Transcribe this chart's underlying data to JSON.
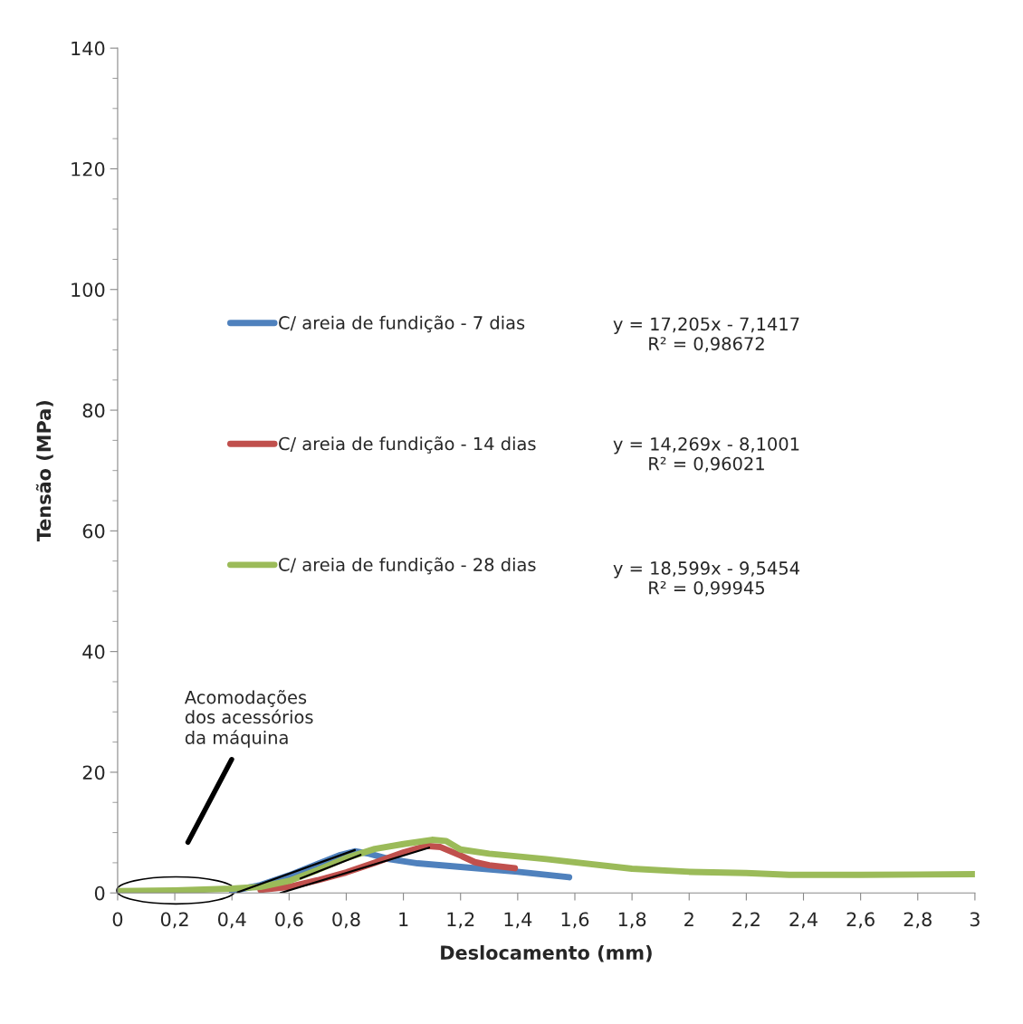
{
  "chart_data": {
    "type": "line",
    "xlabel": "Deslocamento (mm)",
    "ylabel": "Tensão (MPa)",
    "xlim": [
      0,
      3
    ],
    "ylim": [
      0,
      140
    ],
    "xticks": [
      0,
      {
        "value": 0.2,
        "label": "0,2"
      },
      {
        "value": 0.4,
        "label": "0,4"
      },
      {
        "value": 0.6,
        "label": "0,6"
      },
      {
        "value": 0.8,
        "label": "0,8"
      },
      1,
      {
        "value": 1.2,
        "label": "1,2"
      },
      {
        "value": 1.4,
        "label": "1,4"
      },
      {
        "value": 1.6,
        "label": "1,6"
      },
      {
        "value": 1.8,
        "label": "1,8"
      },
      2,
      {
        "value": 2.2,
        "label": "2,2"
      },
      {
        "value": 2.4,
        "label": "2,4"
      },
      {
        "value": 2.6,
        "label": "2,6"
      },
      {
        "value": 2.8,
        "label": "2,8"
      },
      3
    ],
    "yticks": [
      0,
      20,
      40,
      60,
      80,
      100,
      120,
      140
    ],
    "grid": false,
    "legend": "center",
    "marker": "none",
    "line_style": "solid",
    "series": [
      {
        "name": "C/ areia de fundição - 7 dias",
        "color": "#4f81bd",
        "x": [
          0.4,
          0.5,
          0.6,
          0.7,
          0.78,
          0.83,
          0.88,
          0.95,
          1.05,
          1.2,
          1.4,
          1.58
        ],
        "values": [
          0.3,
          1.3,
          2.9,
          4.8,
          6.3,
          6.9,
          6.5,
          5.6,
          4.9,
          4.3,
          3.5,
          2.6
        ]
      },
      {
        "name": "C/ areia de fundição - 14 dias",
        "color": "#c0504d",
        "x": [
          0.5,
          0.6,
          0.7,
          0.8,
          0.9,
          1.0,
          1.08,
          1.13,
          1.2,
          1.25,
          1.3,
          1.39
        ],
        "values": [
          0.5,
          1.0,
          2.1,
          3.4,
          5.0,
          6.7,
          7.8,
          7.6,
          6.2,
          5.1,
          4.6,
          4.1
        ]
      },
      {
        "name": "C/ areia de fundição - 28 dias",
        "color": "#9bbb59",
        "x": [
          0,
          0.2,
          0.4,
          0.5,
          0.6,
          0.7,
          0.8,
          0.9,
          1.0,
          1.1,
          1.15,
          1.2,
          1.3,
          1.5,
          1.8,
          2.0,
          2.2,
          2.35,
          2.6,
          3.0
        ],
        "values": [
          0.3,
          0.4,
          0.7,
          1.0,
          2.0,
          3.8,
          5.8,
          7.3,
          8.1,
          8.8,
          8.6,
          7.2,
          6.5,
          5.6,
          4.0,
          3.5,
          3.3,
          3.0,
          3.0,
          3.1
        ]
      },
      {
        "type": "line",
        "color": "#000000",
        "x": [
          0.42,
          0.83
        ],
        "values": [
          0.1,
          7.1
        ]
      },
      {
        "type": "line",
        "color": "#000000",
        "x": [
          0.57,
          1.09
        ],
        "values": [
          0.0,
          7.5
        ]
      },
      {
        "type": "line",
        "color": "#000000",
        "x": [
          0.64,
          0.85
        ],
        "values": [
          2.4,
          6.3
        ]
      }
    ],
    "annotations": [
      "y = 17,205x - 7,1417\nR² = 0,98672",
      "y = 14,269x - 8,1001\nR² = 0,96021",
      "y = 18,599x - 9,5454\nR² = 0,99945",
      "Acomodações\ndos acessórios\nda máquina"
    ]
  }
}
